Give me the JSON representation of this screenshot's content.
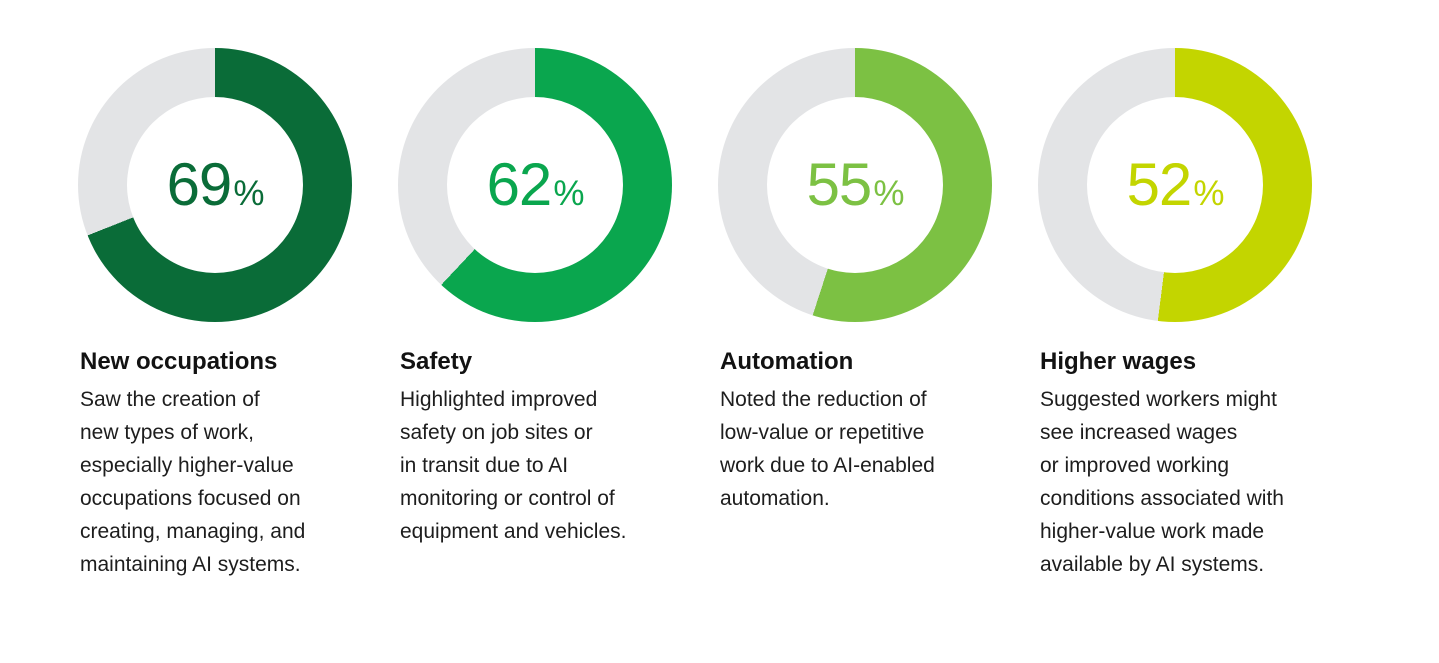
{
  "chart_data": {
    "type": "donut",
    "unit": "%",
    "track_color": "#e3e4e6",
    "start_angle": "top",
    "direction": "clockwise",
    "charts": [
      {
        "label": "New occupations",
        "value": 69,
        "color": "#0a6c38"
      },
      {
        "label": "Safety",
        "value": 62,
        "color": "#0aa64e"
      },
      {
        "label": "Automation",
        "value": 55,
        "color": "#7cc143"
      },
      {
        "label": "Higher wages",
        "value": 52,
        "color": "#c3d500"
      }
    ]
  },
  "percent_suffix": "%",
  "cards": [
    {
      "title": "New occupations",
      "description": "Saw the creation of\nnew types of work,\nespecially higher-value\noccupations focused on\ncreating, managing, and\nmaintaining AI systems."
    },
    {
      "title": "Safety",
      "description": "Highlighted improved\nsafety on job sites or\nin transit due to AI\nmonitoring or control of\nequipment and vehicles."
    },
    {
      "title": "Automation",
      "description": "Noted the reduction of\nlow-value or repetitive\nwork due to AI-enabled\nautomation."
    },
    {
      "title": "Higher wages",
      "description": "Suggested workers might\nsee increased wages\nor improved working\nconditions associated with\nhigher-value work made\navailable by AI systems."
    }
  ]
}
